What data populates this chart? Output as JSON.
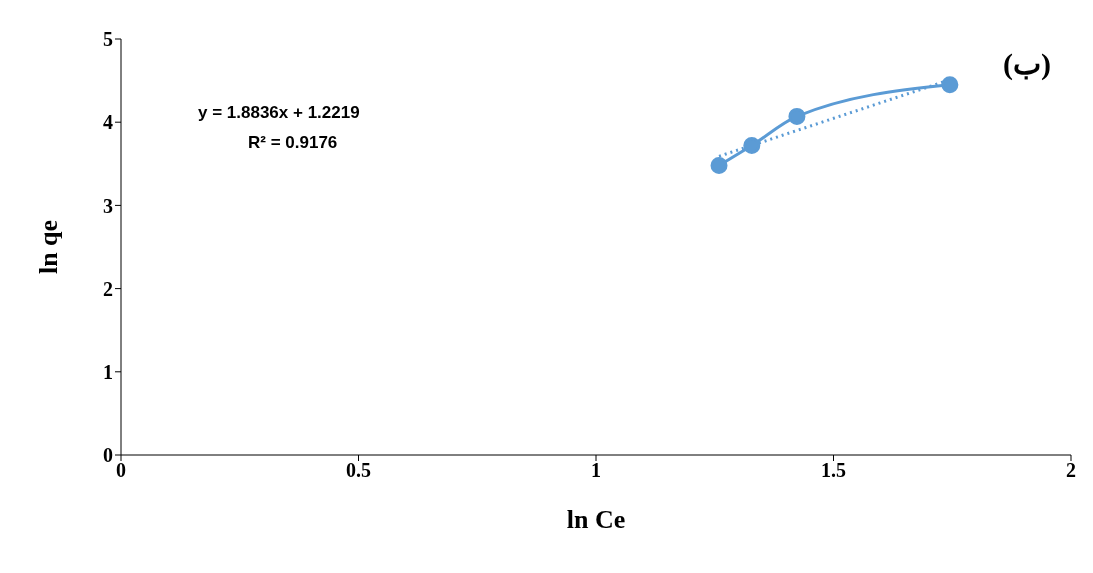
{
  "chart_data": {
    "type": "line",
    "xlabel": "ln Ce",
    "ylabel": "ln qe",
    "xlim": [
      0,
      2
    ],
    "xticks": [
      0,
      0.5,
      1,
      1.5,
      2
    ],
    "ylim": [
      0,
      5
    ],
    "yticks": [
      0,
      1,
      2,
      3,
      4,
      5
    ],
    "annotations": [
      "y = 1.8836x + 1.2219",
      "R² = 0.9176",
      "(ب)"
    ],
    "series": [
      {
        "color": "#5b9bd5",
        "marker": "circle",
        "line_style": "solid",
        "x": [
          1.259,
          1.328,
          1.423,
          1.745
        ],
        "values": [
          3.48,
          3.72,
          4.07,
          4.45
        ]
      },
      {
        "color": "#5b9bd5",
        "marker": "none",
        "line_style": "dotted",
        "x": [
          1.259,
          1.745
        ],
        "values": [
          3.59,
          4.51
        ]
      }
    ]
  }
}
